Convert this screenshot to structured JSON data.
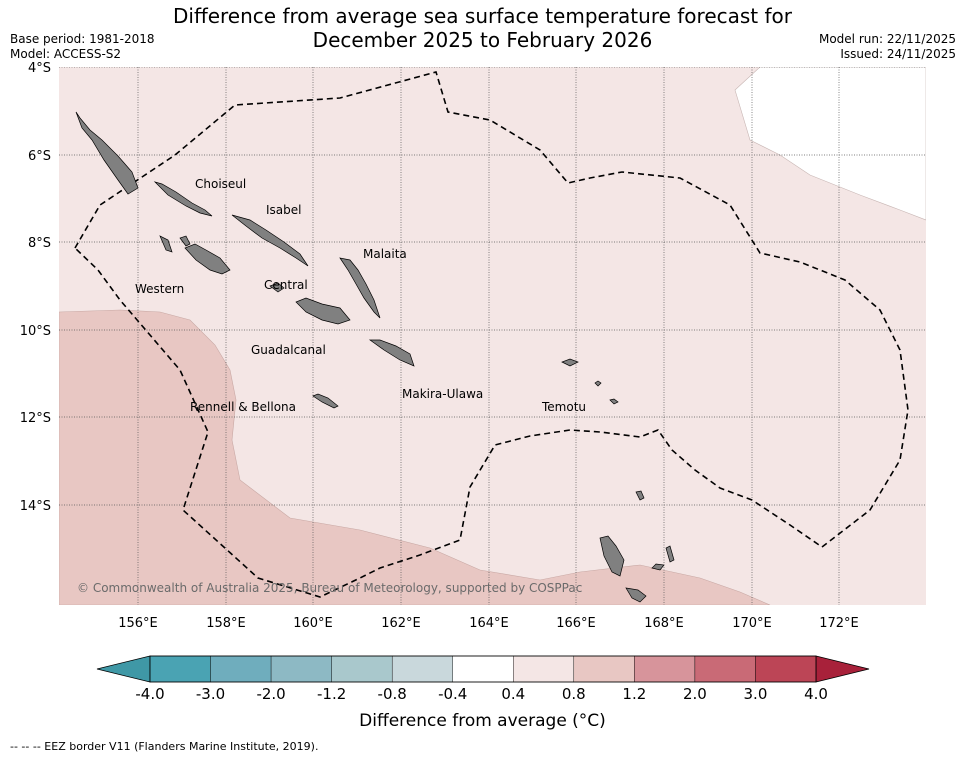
{
  "title_line1": "Difference from average sea surface temperature forecast for",
  "title_line2": "December 2025 to February 2026",
  "base_period": "Base period: 1981-2018",
  "model": "Model: ACCESS-S2",
  "model_run": "Model run: 22/11/2025",
  "issued": "Issued: 24/11/2025",
  "lat_labels": [
    "4°S",
    "6°S",
    "8°S",
    "10°S",
    "12°S",
    "14°S"
  ],
  "lon_labels": [
    "156°E",
    "158°E",
    "160°E",
    "162°E",
    "164°E",
    "166°E",
    "168°E",
    "170°E",
    "172°E"
  ],
  "provinces": {
    "choiseul": "Choiseul",
    "isabel": "Isabel",
    "malaita": "Malaita",
    "western": "Western",
    "central": "Central",
    "guadalcanal": "Guadalcanal",
    "makira_ulawa": "Makira-Ulawa",
    "temotu": "Temotu",
    "rennell_bellona": "Rennell & Bellona"
  },
  "copyright": "© Commonwealth of Australia 2025, Bureau of Meteorology, supported by COSPPac",
  "colorbar": {
    "ticks": [
      "-4.0",
      "-3.0",
      "-2.0",
      "-1.2",
      "-0.8",
      "-0.4",
      "0.4",
      "0.8",
      "1.2",
      "2.0",
      "3.0",
      "4.0"
    ],
    "colors": [
      "#3f98a6",
      "#4aa3b3",
      "#6fadbd",
      "#8db9c4",
      "#a9c8cc",
      "#c9d8dc",
      "#ffffff",
      "#f4e6e5",
      "#e8c7c3",
      "#d7949b",
      "#c96a76",
      "#bc4556",
      "#a8213a"
    ],
    "title": "Difference from average (°C)"
  },
  "eez_note": "--  --  -- EEZ border V11 (Flanders Marine Institute, 2019).",
  "anomaly_classes_present": [
    "0.4 to 0.8",
    "0.8 to 1.2",
    "-0.4 to 0.4"
  ]
}
